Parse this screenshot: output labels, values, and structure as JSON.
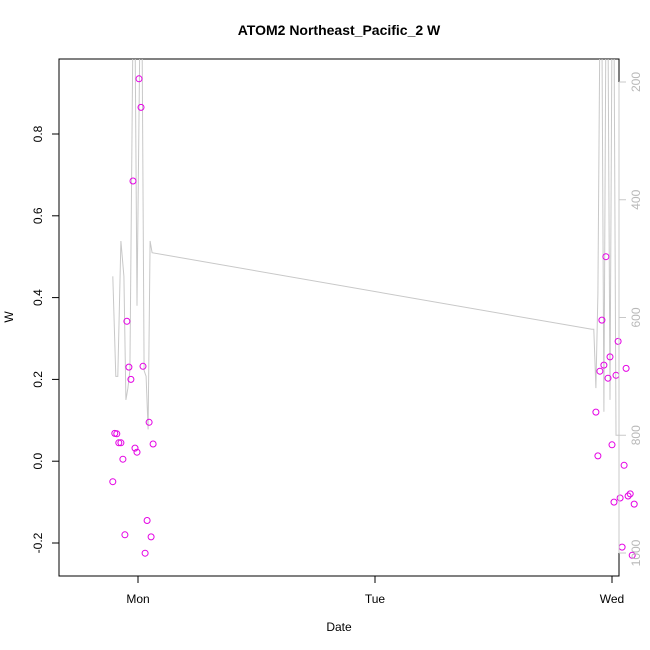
{
  "chart_data": {
    "type": "scatter",
    "title": "ATOM2 Northeast_Pacific_2 W",
    "xlabel": "Date",
    "ylabel": "W",
    "x_tick_labels": [
      "Mon",
      "Tue",
      "Wed"
    ],
    "x_range_days": [
      -0.6,
      4.95
    ],
    "ylim": [
      -0.28,
      0.98
    ],
    "yticks": [
      -0.2,
      0.0,
      0.2,
      0.4,
      0.6,
      0.8
    ],
    "y2_ticks": [
      200,
      400,
      600,
      800,
      1000
    ],
    "y2_range": [
      160,
      1030
    ],
    "y2_reversed": true,
    "points_color": "#e400e4",
    "line_color": "#c8c8c8",
    "series": [
      {
        "kind": "points",
        "x": [
          -0.25,
          -0.23,
          -0.21,
          -0.19,
          -0.17,
          -0.15,
          -0.13,
          -0.11,
          -0.09,
          -0.07,
          -0.05,
          -0.03,
          -0.01,
          0.01,
          0.03,
          0.05,
          0.07,
          0.09,
          0.11,
          0.13,
          0.15,
          0.17,
          0.19,
          0.21,
          0.23,
          4.54,
          4.56,
          4.58,
          4.6,
          4.62,
          4.64,
          4.66,
          4.68,
          4.7,
          4.72,
          4.74,
          4.76,
          4.78,
          4.8,
          4.82,
          4.84,
          4.86,
          4.88,
          4.9,
          4.92
        ],
        "y": [
          -0.05,
          0.068,
          0.067,
          0.045,
          0.045,
          0.005,
          -0.18,
          0.342,
          0.23,
          0.2,
          0.685,
          0.032,
          0.022,
          0.935,
          0.865,
          0.232,
          -0.225,
          -0.145,
          0.095,
          -0.185,
          0.042,
          null,
          null,
          null,
          null,
          0.12,
          0.013,
          0.22,
          0.345,
          0.235,
          0.5,
          0.203,
          0.255,
          0.04,
          -0.1,
          0.21,
          0.293,
          -0.09,
          -0.21,
          -0.01,
          0.227,
          -0.085,
          -0.08,
          -0.23,
          -0.105
        ]
      },
      {
        "kind": "line",
        "x": [
          -0.25,
          -0.22,
          -0.2,
          -0.17,
          -0.14,
          -0.12,
          -0.1,
          -0.08,
          -0.05,
          -0.03,
          -0.01,
          0.02,
          0.04,
          0.06,
          0.08,
          0.1,
          0.12,
          0.14,
          4.5,
          4.52,
          4.54,
          4.56,
          4.58,
          4.6,
          4.62,
          4.64,
          4.66,
          4.68,
          4.7,
          4.72,
          4.74,
          4.76,
          4.78,
          4.8,
          4.82,
          4.85
        ],
        "y2": [
          530,
          700,
          700,
          470,
          530,
          740,
          720,
          690,
          100,
          100,
          580,
          100,
          100,
          690,
          700,
          790,
          470,
          490,
          620,
          620,
          720,
          560,
          100,
          100,
          760,
          100,
          100,
          740,
          100,
          100,
          800,
          800,
          800,
          790,
          770,
          735
        ]
      }
    ]
  }
}
